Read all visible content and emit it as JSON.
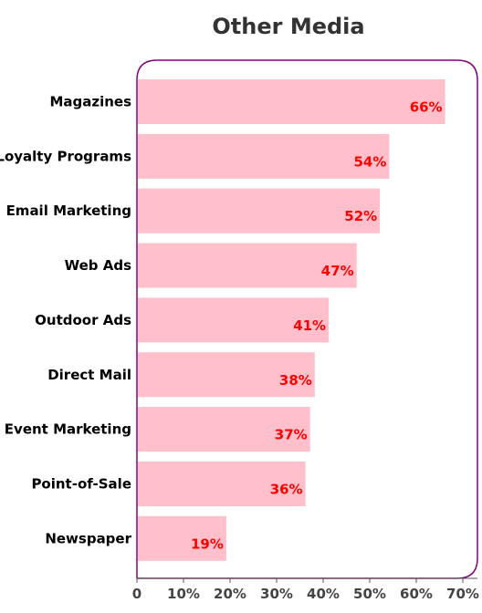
{
  "chart_data": {
    "type": "bar",
    "orientation": "horizontal",
    "title": "Other Media",
    "xlabel": "",
    "ylabel": "",
    "categories": [
      "Magazines",
      "Loyalty Programs",
      "Email Marketing",
      "Web Ads",
      "Outdoor Ads",
      "Direct Mail",
      "Event Marketing",
      "Point-of-Sale",
      "Newspaper"
    ],
    "values": [
      66,
      54,
      52,
      47,
      41,
      38,
      37,
      36,
      19
    ],
    "value_labels": [
      "66%",
      "54%",
      "52%",
      "47%",
      "41%",
      "38%",
      "37%",
      "36%",
      "19%"
    ],
    "xlim": [
      0,
      70
    ],
    "xticks": [
      0,
      10,
      20,
      30,
      40,
      50,
      60,
      70
    ],
    "xtick_labels": [
      "0",
      "10%",
      "20%",
      "30%",
      "40%",
      "50%",
      "60%",
      "70%"
    ],
    "grid": false,
    "legend": "none",
    "colors": {
      "bar": "#ffc0cb",
      "data_label": "#ff0000",
      "frame": "#800080",
      "title": "#333333"
    }
  }
}
